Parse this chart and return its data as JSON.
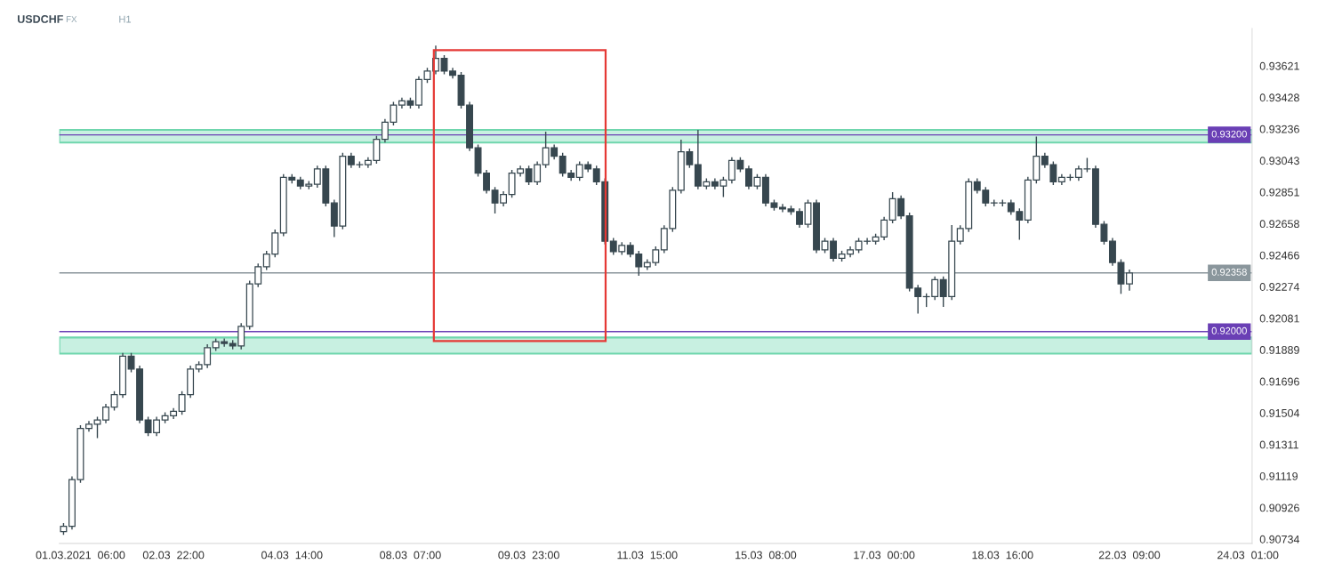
{
  "chart_data": {
    "type": "candlestick",
    "title": "USDCHF",
    "annotations": [
      "FX",
      "H1"
    ],
    "color": "#37474f",
    "categories": [
      null,
      null,
      "01.03.2021  06:00",
      null,
      null,
      null,
      null,
      null,
      null,
      null,
      null,
      null,
      null,
      "02.03  22:00",
      null,
      null,
      null,
      null,
      null,
      null,
      null,
      null,
      null,
      null,
      null,
      null,
      null,
      "04.03  14:00",
      null,
      null,
      null,
      null,
      null,
      null,
      null,
      null,
      null,
      null,
      null,
      null,
      null,
      "08.03  07:00",
      null,
      null,
      null,
      null,
      null,
      null,
      null,
      null,
      null,
      null,
      null,
      null,
      null,
      "09.03  23:00",
      null,
      null,
      null,
      null,
      null,
      null,
      null,
      null,
      null,
      null,
      null,
      null,
      null,
      "11.03  15:00",
      null,
      null,
      null,
      null,
      null,
      null,
      null,
      null,
      null,
      null,
      null,
      null,
      null,
      "15.03  08:00",
      null,
      null,
      null,
      null,
      null,
      null,
      null,
      null,
      null,
      null,
      null,
      null,
      null,
      "17.03  00:00",
      null,
      null,
      null,
      null,
      null,
      null,
      null,
      null,
      null,
      null,
      null,
      null,
      null,
      "18.03  16:00",
      null,
      null,
      null,
      null,
      null,
      null,
      null,
      null,
      null,
      null,
      null,
      null,
      null,
      null,
      "22.03  09:00",
      null,
      null,
      null,
      null,
      null,
      null,
      null,
      null,
      null,
      null,
      null,
      null,
      null,
      "24.03  01:00"
    ],
    "ohlc": [
      [
        0.9078,
        0.90832,
        0.9076,
        0.90812
      ],
      [
        0.90812,
        0.91117,
        0.90792,
        0.91097
      ],
      [
        0.91097,
        0.91429,
        0.91077,
        0.91409
      ],
      [
        0.91409,
        0.91455,
        0.91389,
        0.91435
      ],
      [
        0.91435,
        0.91481,
        0.9135,
        0.91461
      ],
      [
        0.91461,
        0.91559,
        0.91441,
        0.91539
      ],
      [
        0.91539,
        0.91636,
        0.91519,
        0.91616
      ],
      [
        0.91616,
        0.9187,
        0.91596,
        0.9185
      ],
      [
        0.9185,
        0.9187,
        0.91752,
        0.91772
      ],
      [
        0.91772,
        0.91792,
        0.91441,
        0.91461
      ],
      [
        0.91461,
        0.91481,
        0.91363,
        0.91383
      ],
      [
        0.91383,
        0.91481,
        0.91363,
        0.91461
      ],
      [
        0.91461,
        0.91507,
        0.91441,
        0.91487
      ],
      [
        0.91487,
        0.91533,
        0.91467,
        0.91513
      ],
      [
        0.91513,
        0.91636,
        0.91493,
        0.91616
      ],
      [
        0.91616,
        0.91792,
        0.91596,
        0.91772
      ],
      [
        0.91772,
        0.91818,
        0.91752,
        0.91798
      ],
      [
        0.91798,
        0.91922,
        0.91778,
        0.91902
      ],
      [
        0.91902,
        0.91958,
        0.91882,
        0.91938
      ],
      [
        0.91938,
        0.91958,
        0.91908,
        0.91928
      ],
      [
        0.91928,
        0.91948,
        0.91892,
        0.91912
      ],
      [
        0.91912,
        0.92052,
        0.91892,
        0.92032
      ],
      [
        0.92032,
        0.92311,
        0.92012,
        0.92291
      ],
      [
        0.92291,
        0.92415,
        0.92271,
        0.92395
      ],
      [
        0.92395,
        0.92493,
        0.92375,
        0.92473
      ],
      [
        0.92473,
        0.92622,
        0.92453,
        0.92602
      ],
      [
        0.92602,
        0.9296,
        0.92582,
        0.9294
      ],
      [
        0.9294,
        0.9296,
        0.92904,
        0.92924
      ],
      [
        0.92924,
        0.92944,
        0.92868,
        0.92888
      ],
      [
        0.92888,
        0.92918,
        0.92868,
        0.92898
      ],
      [
        0.92898,
        0.93012,
        0.92878,
        0.92992
      ],
      [
        0.92992,
        0.93012,
        0.92764,
        0.92784
      ],
      [
        0.92784,
        0.92804,
        0.92577,
        0.92644
      ],
      [
        0.92644,
        0.9309,
        0.92624,
        0.9307
      ],
      [
        0.9307,
        0.9309,
        0.92998,
        0.93018
      ],
      [
        0.93018,
        0.93038,
        0.92998,
        0.93018
      ],
      [
        0.93018,
        0.93064,
        0.92998,
        0.93044
      ],
      [
        0.93044,
        0.93193,
        0.93024,
        0.93173
      ],
      [
        0.93173,
        0.93297,
        0.93153,
        0.93277
      ],
      [
        0.93277,
        0.93401,
        0.93257,
        0.93381
      ],
      [
        0.93381,
        0.93427,
        0.93361,
        0.93407
      ],
      [
        0.93407,
        0.93427,
        0.93361,
        0.93381
      ],
      [
        0.93381,
        0.93557,
        0.93361,
        0.93537
      ],
      [
        0.93537,
        0.93609,
        0.93517,
        0.93589
      ],
      [
        0.93589,
        0.93744,
        0.93569,
        0.93666
      ],
      [
        0.93666,
        0.93686,
        0.93569,
        0.93589
      ],
      [
        0.93589,
        0.93609,
        0.93543,
        0.93563
      ],
      [
        0.93563,
        0.93583,
        0.93361,
        0.93381
      ],
      [
        0.93381,
        0.93401,
        0.93101,
        0.93121
      ],
      [
        0.93121,
        0.93141,
        0.92946,
        0.92966
      ],
      [
        0.92966,
        0.92986,
        0.92842,
        0.92862
      ],
      [
        0.92862,
        0.92882,
        0.9272,
        0.92784
      ],
      [
        0.92784,
        0.92856,
        0.92764,
        0.92836
      ],
      [
        0.92836,
        0.92986,
        0.92816,
        0.92966
      ],
      [
        0.92966,
        0.93012,
        0.92946,
        0.92992
      ],
      [
        0.92992,
        0.93012,
        0.92894,
        0.92914
      ],
      [
        0.92914,
        0.93038,
        0.92894,
        0.93018
      ],
      [
        0.93018,
        0.9322,
        0.92998,
        0.93121
      ],
      [
        0.93121,
        0.93141,
        0.9305,
        0.9307
      ],
      [
        0.9307,
        0.9309,
        0.92946,
        0.92966
      ],
      [
        0.92966,
        0.92986,
        0.9292,
        0.9294
      ],
      [
        0.9294,
        0.93038,
        0.9292,
        0.93018
      ],
      [
        0.93018,
        0.93038,
        0.92972,
        0.92992
      ],
      [
        0.92992,
        0.93012,
        0.92894,
        0.92914
      ],
      [
        0.92914,
        0.92934,
        0.92531,
        0.92551
      ],
      [
        0.92551,
        0.92571,
        0.92468,
        0.92488
      ],
      [
        0.92488,
        0.92545,
        0.92468,
        0.92525
      ],
      [
        0.92525,
        0.92545,
        0.92453,
        0.92473
      ],
      [
        0.92473,
        0.92493,
        0.9234,
        0.92395
      ],
      [
        0.92395,
        0.92441,
        0.92375,
        0.92421
      ],
      [
        0.92421,
        0.92519,
        0.92401,
        0.92499
      ],
      [
        0.92499,
        0.92648,
        0.92479,
        0.92628
      ],
      [
        0.92628,
        0.92882,
        0.92608,
        0.92862
      ],
      [
        0.92862,
        0.9317,
        0.92842,
        0.93096
      ],
      [
        0.93096,
        0.93116,
        0.92998,
        0.93018
      ],
      [
        0.93018,
        0.9323,
        0.92868,
        0.92888
      ],
      [
        0.92888,
        0.92934,
        0.92868,
        0.92914
      ],
      [
        0.92914,
        0.92934,
        0.92868,
        0.92888
      ],
      [
        0.92888,
        0.92944,
        0.9282,
        0.92924
      ],
      [
        0.92924,
        0.93064,
        0.92904,
        0.93044
      ],
      [
        0.93044,
        0.93064,
        0.92972,
        0.92992
      ],
      [
        0.92992,
        0.93012,
        0.92868,
        0.92888
      ],
      [
        0.92888,
        0.9296,
        0.92868,
        0.9294
      ],
      [
        0.9294,
        0.9296,
        0.92764,
        0.92784
      ],
      [
        0.92784,
        0.92804,
        0.92738,
        0.92758
      ],
      [
        0.92758,
        0.92778,
        0.92728,
        0.92748
      ],
      [
        0.92748,
        0.92768,
        0.92712,
        0.92732
      ],
      [
        0.92732,
        0.92752,
        0.92634,
        0.92654
      ],
      [
        0.92654,
        0.92804,
        0.92634,
        0.92784
      ],
      [
        0.92784,
        0.92804,
        0.92479,
        0.92499
      ],
      [
        0.92499,
        0.92571,
        0.92479,
        0.92551
      ],
      [
        0.92551,
        0.92571,
        0.92427,
        0.92447
      ],
      [
        0.92447,
        0.92493,
        0.92427,
        0.92473
      ],
      [
        0.92473,
        0.92519,
        0.92453,
        0.92499
      ],
      [
        0.92499,
        0.92571,
        0.92479,
        0.92551
      ],
      [
        0.92551,
        0.92571,
        0.92531,
        0.92551
      ],
      [
        0.92551,
        0.92597,
        0.92531,
        0.92577
      ],
      [
        0.92577,
        0.927,
        0.92557,
        0.9268
      ],
      [
        0.9268,
        0.9285,
        0.9266,
        0.9281
      ],
      [
        0.9281,
        0.9283,
        0.92686,
        0.92706
      ],
      [
        0.92706,
        0.92726,
        0.92245,
        0.92265
      ],
      [
        0.92265,
        0.92285,
        0.9211,
        0.92213
      ],
      [
        0.92213,
        0.92233,
        0.9215,
        0.92213
      ],
      [
        0.92213,
        0.92337,
        0.92193,
        0.92317
      ],
      [
        0.92317,
        0.92337,
        0.9215,
        0.92213
      ],
      [
        0.92213,
        0.9265,
        0.92193,
        0.92551
      ],
      [
        0.92551,
        0.92648,
        0.92531,
        0.92628
      ],
      [
        0.92628,
        0.92934,
        0.92608,
        0.92914
      ],
      [
        0.92914,
        0.92934,
        0.92842,
        0.92862
      ],
      [
        0.92862,
        0.92882,
        0.92764,
        0.92784
      ],
      [
        0.92784,
        0.92804,
        0.92764,
        0.92784
      ],
      [
        0.92784,
        0.92804,
        0.92764,
        0.92784
      ],
      [
        0.92784,
        0.92804,
        0.92712,
        0.92732
      ],
      [
        0.92732,
        0.92752,
        0.9256,
        0.9268
      ],
      [
        0.9268,
        0.92944,
        0.9266,
        0.92924
      ],
      [
        0.92924,
        0.9319,
        0.92904,
        0.9307
      ],
      [
        0.9307,
        0.9309,
        0.92998,
        0.93018
      ],
      [
        0.93018,
        0.93038,
        0.92894,
        0.92914
      ],
      [
        0.92914,
        0.9296,
        0.92894,
        0.9294
      ],
      [
        0.9294,
        0.9296,
        0.9292,
        0.9294
      ],
      [
        0.9294,
        0.93012,
        0.9292,
        0.92992
      ],
      [
        0.92992,
        0.9306,
        0.92972,
        0.92992
      ],
      [
        0.92992,
        0.93012,
        0.92634,
        0.92654
      ],
      [
        0.92654,
        0.92674,
        0.92531,
        0.92551
      ],
      [
        0.92551,
        0.92571,
        0.92401,
        0.92421
      ],
      [
        0.92421,
        0.92441,
        0.9223,
        0.92291
      ],
      [
        0.92291,
        0.92378,
        0.9225,
        0.92358
      ],
      null,
      null,
      null,
      null,
      null,
      null,
      null,
      null,
      null,
      null,
      null,
      null,
      null,
      null
    ],
    "ylim": [
      0.90708,
      0.93848
    ],
    "yticks": [
      0.90734,
      0.90926,
      0.91119,
      0.91311,
      0.91504,
      0.91696,
      0.91889,
      0.92081,
      0.92274,
      0.92466,
      0.92658,
      0.92851,
      0.93043,
      0.93236,
      0.93428,
      0.93621
    ],
    "bands": [
      {
        "axis": "y",
        "from": 0.93153,
        "to": 0.9323,
        "color": "#c8f0e1"
      },
      {
        "axis": "y",
        "from": 0.91866,
        "to": 0.91964,
        "color": "#c8f0e1"
      }
    ],
    "ref_lines": [
      {
        "axis": "y",
        "value": 0.92358,
        "label": "0.92358",
        "color": "#8a969c"
      },
      {
        "axis": "y",
        "value": 0.932,
        "label": "0.93200",
        "color": "#6a3fb5"
      },
      {
        "axis": "y",
        "value": 0.92,
        "label": "0.92000",
        "color": "#6a3fb5"
      }
    ],
    "grid": false
  }
}
